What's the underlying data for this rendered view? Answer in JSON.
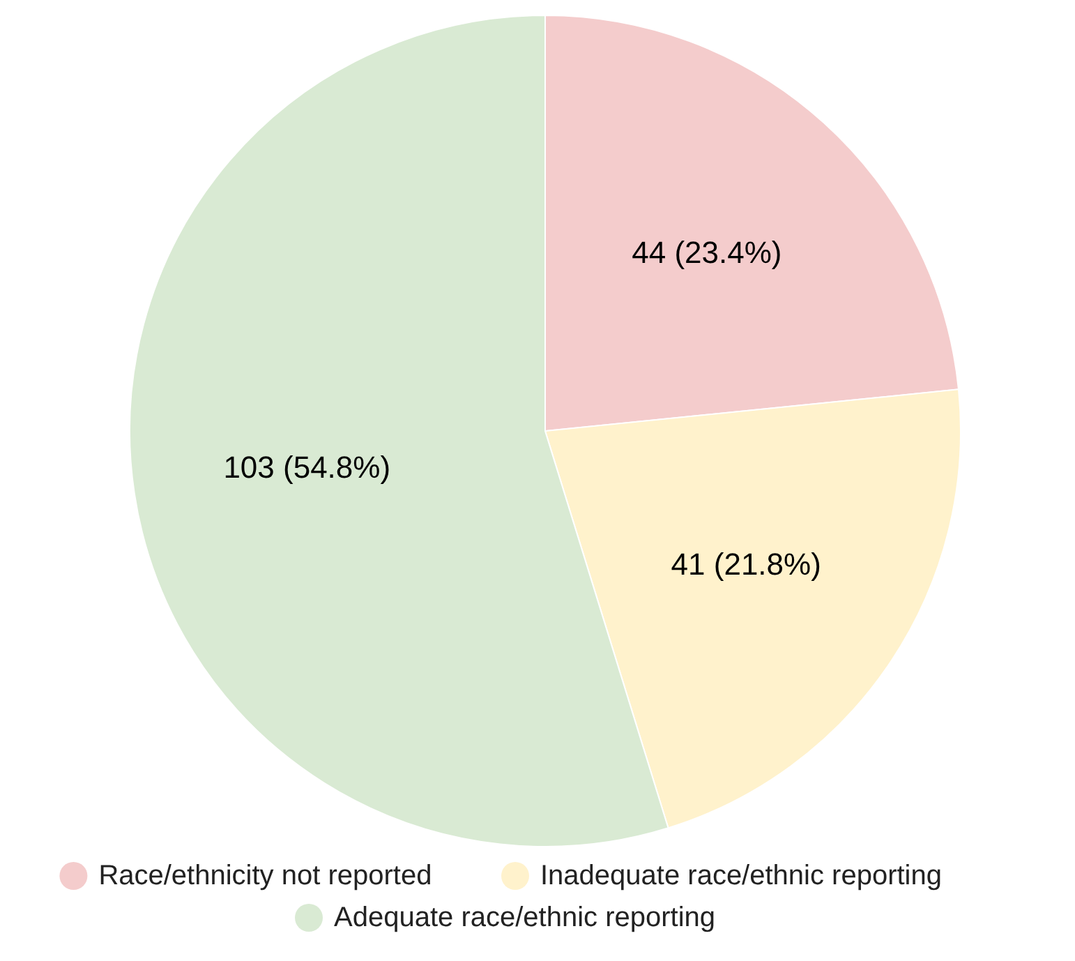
{
  "chart_data": {
    "type": "pie",
    "categories": [
      "Race/ethnicity not reported",
      "Inadequate race/ethnic reporting",
      "Adequate race/ethnic reporting"
    ],
    "values": [
      44,
      41,
      103
    ],
    "colors": [
      "#f4cccc",
      "#fff2cc",
      "#d9ead3"
    ],
    "value_labels": [
      "44 (23.4%)",
      "41 (21.8%)",
      "103 (54.8%)"
    ],
    "legend": "bottom"
  }
}
